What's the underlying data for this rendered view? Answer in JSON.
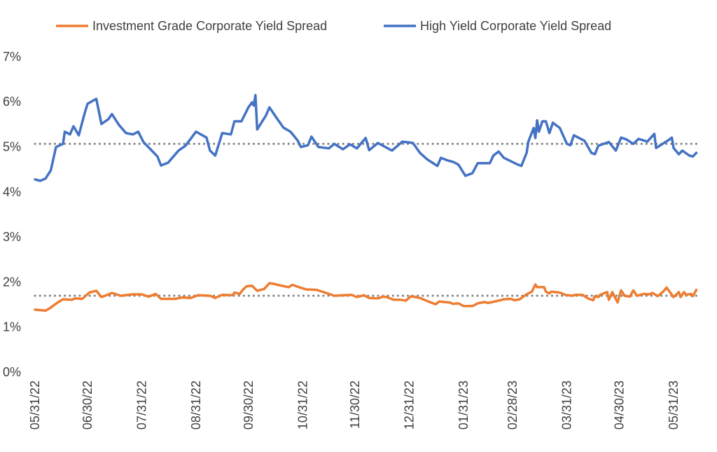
{
  "chart_data": {
    "type": "line",
    "title": "",
    "xlabel": "",
    "ylabel": "",
    "x_units": "days since 05/31/22",
    "ylim": [
      0,
      7
    ],
    "xlim": [
      0,
      378
    ],
    "y_ticks": [
      "0%",
      "1%",
      "2%",
      "3%",
      "4%",
      "5%",
      "6%",
      "7%"
    ],
    "x_ticks": [
      {
        "label": "05/31/22",
        "day": 0
      },
      {
        "label": "06/30/22",
        "day": 30
      },
      {
        "label": "07/31/22",
        "day": 61
      },
      {
        "label": "08/31/22",
        "day": 92
      },
      {
        "label": "09/30/22",
        "day": 122
      },
      {
        "label": "10/31/22",
        "day": 153
      },
      {
        "label": "11/30/22",
        "day": 183
      },
      {
        "label": "12/31/22",
        "day": 214
      },
      {
        "label": "01/31/23",
        "day": 245
      },
      {
        "label": "02/28/23",
        "day": 273
      },
      {
        "label": "03/31/23",
        "day": 304
      },
      {
        "label": "04/30/23",
        "day": 334
      },
      {
        "label": "05/31/23",
        "day": 365
      }
    ],
    "grid": false,
    "legend_position": "top",
    "series": [
      {
        "name": "Investment Grade Corporate Yield Spread",
        "color": "#ED7D31",
        "average": 1.68,
        "points": [
          [
            0,
            1.37
          ],
          [
            6,
            1.35
          ],
          [
            8,
            1.39
          ],
          [
            13,
            1.53
          ],
          [
            16,
            1.6
          ],
          [
            21,
            1.59
          ],
          [
            23,
            1.62
          ],
          [
            27,
            1.61
          ],
          [
            31,
            1.75
          ],
          [
            35,
            1.79
          ],
          [
            38,
            1.65
          ],
          [
            44,
            1.74
          ],
          [
            49,
            1.68
          ],
          [
            56,
            1.71
          ],
          [
            61,
            1.71
          ],
          [
            65,
            1.66
          ],
          [
            69,
            1.72
          ],
          [
            72,
            1.61
          ],
          [
            80,
            1.61
          ],
          [
            84,
            1.64
          ],
          [
            89,
            1.63
          ],
          [
            93,
            1.69
          ],
          [
            100,
            1.68
          ],
          [
            103,
            1.63
          ],
          [
            107,
            1.7
          ],
          [
            113,
            1.69
          ],
          [
            114,
            1.75
          ],
          [
            117,
            1.72
          ],
          [
            119,
            1.82
          ],
          [
            121,
            1.89
          ],
          [
            124,
            1.9
          ],
          [
            127,
            1.79
          ],
          [
            131,
            1.83
          ],
          [
            134,
            1.96
          ],
          [
            137,
            1.94
          ],
          [
            140,
            1.91
          ],
          [
            145,
            1.87
          ],
          [
            147,
            1.92
          ],
          [
            151,
            1.87
          ],
          [
            155,
            1.82
          ],
          [
            161,
            1.81
          ],
          [
            168,
            1.72
          ],
          [
            171,
            1.68
          ],
          [
            181,
            1.7
          ],
          [
            184,
            1.65
          ],
          [
            188,
            1.69
          ],
          [
            191,
            1.63
          ],
          [
            196,
            1.62
          ],
          [
            199,
            1.66
          ],
          [
            201,
            1.65
          ],
          [
            205,
            1.59
          ],
          [
            209,
            1.59
          ],
          [
            212,
            1.57
          ],
          [
            215,
            1.67
          ],
          [
            220,
            1.63
          ],
          [
            223,
            1.58
          ],
          [
            229,
            1.49
          ],
          [
            231,
            1.55
          ],
          [
            237,
            1.53
          ],
          [
            239,
            1.5
          ],
          [
            242,
            1.51
          ],
          [
            245,
            1.45
          ],
          [
            250,
            1.45
          ],
          [
            253,
            1.51
          ],
          [
            257,
            1.54
          ],
          [
            259,
            1.52
          ],
          [
            265,
            1.57
          ],
          [
            268,
            1.6
          ],
          [
            272,
            1.61
          ],
          [
            274,
            1.58
          ],
          [
            277,
            1.6
          ],
          [
            281,
            1.71
          ],
          [
            284,
            1.77
          ],
          [
            286,
            1.93
          ],
          [
            287,
            1.87
          ],
          [
            291,
            1.87
          ],
          [
            292,
            1.77
          ],
          [
            294,
            1.73
          ],
          [
            295,
            1.77
          ],
          [
            300,
            1.75
          ],
          [
            303,
            1.7
          ],
          [
            307,
            1.68
          ],
          [
            309,
            1.7
          ],
          [
            313,
            1.7
          ],
          [
            316,
            1.62
          ],
          [
            319,
            1.58
          ],
          [
            320,
            1.67
          ],
          [
            322,
            1.65
          ],
          [
            323,
            1.7
          ],
          [
            327,
            1.76
          ],
          [
            328,
            1.59
          ],
          [
            330,
            1.76
          ],
          [
            333,
            1.53
          ],
          [
            335,
            1.8
          ],
          [
            337,
            1.68
          ],
          [
            340,
            1.66
          ],
          [
            342,
            1.8
          ],
          [
            344,
            1.68
          ],
          [
            348,
            1.72
          ],
          [
            351,
            1.71
          ],
          [
            353,
            1.74
          ],
          [
            356,
            1.67
          ],
          [
            359,
            1.77
          ],
          [
            361,
            1.86
          ],
          [
            365,
            1.65
          ],
          [
            368,
            1.76
          ],
          [
            369,
            1.65
          ],
          [
            371,
            1.76
          ],
          [
            372,
            1.7
          ],
          [
            375,
            1.72
          ],
          [
            376,
            1.67
          ],
          [
            378,
            1.81
          ]
        ]
      },
      {
        "name": "High Yield Corporate Yield Spread",
        "color": "#4472C4",
        "average": 5.05,
        "points": [
          [
            0,
            4.26
          ],
          [
            3,
            4.23
          ],
          [
            6,
            4.28
          ],
          [
            9,
            4.46
          ],
          [
            12,
            4.98
          ],
          [
            16,
            5.05
          ],
          [
            17,
            5.32
          ],
          [
            20,
            5.26
          ],
          [
            22,
            5.44
          ],
          [
            25,
            5.24
          ],
          [
            28,
            5.68
          ],
          [
            30,
            5.94
          ],
          [
            35,
            6.05
          ],
          [
            38,
            5.49
          ],
          [
            42,
            5.6
          ],
          [
            44,
            5.71
          ],
          [
            48,
            5.47
          ],
          [
            52,
            5.29
          ],
          [
            56,
            5.26
          ],
          [
            59,
            5.32
          ],
          [
            62,
            5.09
          ],
          [
            66,
            4.93
          ],
          [
            70,
            4.77
          ],
          [
            72,
            4.57
          ],
          [
            76,
            4.63
          ],
          [
            82,
            4.9
          ],
          [
            86,
            5.01
          ],
          [
            92,
            5.32
          ],
          [
            98,
            5.19
          ],
          [
            100,
            4.9
          ],
          [
            103,
            4.79
          ],
          [
            107,
            5.29
          ],
          [
            112,
            5.26
          ],
          [
            114,
            5.55
          ],
          [
            118,
            5.55
          ],
          [
            122,
            5.86
          ],
          [
            124,
            5.97
          ],
          [
            125,
            5.9
          ],
          [
            126,
            6.13
          ],
          [
            127,
            5.37
          ],
          [
            132,
            5.68
          ],
          [
            134,
            5.86
          ],
          [
            138,
            5.63
          ],
          [
            142,
            5.41
          ],
          [
            146,
            5.32
          ],
          [
            150,
            5.13
          ],
          [
            152,
            4.98
          ],
          [
            156,
            5.02
          ],
          [
            158,
            5.21
          ],
          [
            162,
            4.98
          ],
          [
            168,
            4.95
          ],
          [
            171,
            5.05
          ],
          [
            176,
            4.93
          ],
          [
            180,
            5.04
          ],
          [
            184,
            4.95
          ],
          [
            189,
            5.18
          ],
          [
            191,
            4.91
          ],
          [
            196,
            5.07
          ],
          [
            204,
            4.9
          ],
          [
            210,
            5.1
          ],
          [
            216,
            5.07
          ],
          [
            220,
            4.85
          ],
          [
            224,
            4.71
          ],
          [
            230,
            4.56
          ],
          [
            232,
            4.74
          ],
          [
            236,
            4.68
          ],
          [
            239,
            4.65
          ],
          [
            242,
            4.59
          ],
          [
            246,
            4.34
          ],
          [
            250,
            4.4
          ],
          [
            253,
            4.62
          ],
          [
            260,
            4.62
          ],
          [
            262,
            4.79
          ],
          [
            265,
            4.88
          ],
          [
            268,
            4.74
          ],
          [
            276,
            4.59
          ],
          [
            278,
            4.56
          ],
          [
            281,
            4.85
          ],
          [
            282,
            5.1
          ],
          [
            285,
            5.4
          ],
          [
            286,
            5.18
          ],
          [
            287,
            5.57
          ],
          [
            288,
            5.32
          ],
          [
            290,
            5.55
          ],
          [
            292,
            5.55
          ],
          [
            294,
            5.29
          ],
          [
            296,
            5.52
          ],
          [
            300,
            5.4
          ],
          [
            304,
            5.05
          ],
          [
            306,
            5.02
          ],
          [
            308,
            5.24
          ],
          [
            314,
            5.12
          ],
          [
            318,
            4.85
          ],
          [
            320,
            4.82
          ],
          [
            322,
            5.01
          ],
          [
            328,
            5.09
          ],
          [
            332,
            4.9
          ],
          [
            335,
            5.19
          ],
          [
            338,
            5.15
          ],
          [
            342,
            5.05
          ],
          [
            345,
            5.16
          ],
          [
            350,
            5.1
          ],
          [
            354,
            5.27
          ],
          [
            355,
            4.96
          ],
          [
            362,
            5.13
          ],
          [
            364,
            5.19
          ],
          [
            365,
            4.96
          ],
          [
            368,
            4.82
          ],
          [
            370,
            4.9
          ],
          [
            374,
            4.79
          ],
          [
            376,
            4.77
          ],
          [
            378,
            4.85
          ]
        ]
      }
    ]
  }
}
